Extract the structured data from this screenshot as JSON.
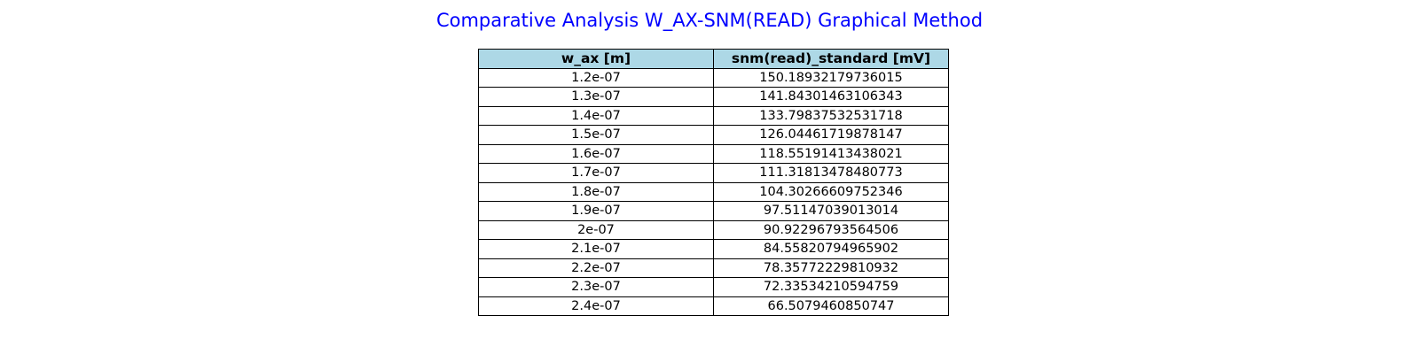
{
  "chart_data": {
    "type": "table",
    "title": "Comparative Analysis W_AX-SNM(READ) Graphical Method",
    "columns": [
      "w_ax [m]",
      "snm(read)_standard [mV]"
    ],
    "rows": [
      [
        "1.2e-07",
        "150.18932179736015"
      ],
      [
        "1.3e-07",
        "141.84301463106343"
      ],
      [
        "1.4e-07",
        "133.79837532531718"
      ],
      [
        "1.5e-07",
        "126.04461719878147"
      ],
      [
        "1.6e-07",
        "118.55191413438021"
      ],
      [
        "1.7e-07",
        "111.31813478480773"
      ],
      [
        "1.8e-07",
        "104.30266609752346"
      ],
      [
        "1.9e-07",
        "97.51147039013014"
      ],
      [
        "2e-07",
        "90.92296793564506"
      ],
      [
        "2.1e-07",
        "84.55820794965902"
      ],
      [
        "2.2e-07",
        "78.35772229810932"
      ],
      [
        "2.3e-07",
        "72.33534210594759"
      ],
      [
        "2.4e-07",
        "66.5079460850747"
      ]
    ],
    "colors": {
      "title": "#0000ff",
      "header_background": "#add8e6",
      "cell_background": "#ffffff",
      "border": "#000000"
    }
  }
}
